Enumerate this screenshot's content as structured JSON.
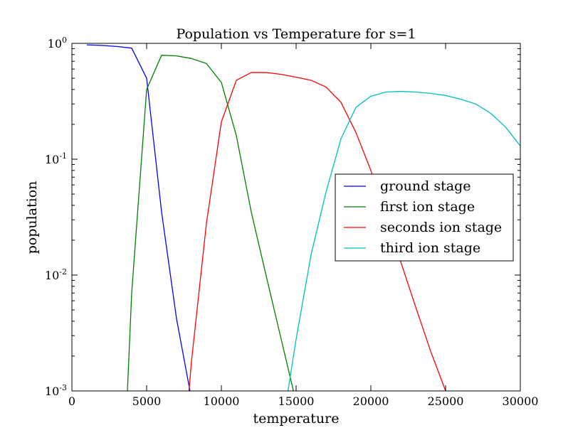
{
  "chart_data": {
    "type": "line",
    "title": "Population vs Temperature for s=1",
    "xlabel": "temperature",
    "ylabel": "population",
    "xlim": [
      0,
      30000
    ],
    "ylim": [
      0.001,
      1.0
    ],
    "yscale": "log",
    "x_ticks": [
      0,
      5000,
      10000,
      15000,
      20000,
      25000,
      30000
    ],
    "y_ticks": [
      {
        "value": 1.0,
        "base": "10",
        "exp": "0"
      },
      {
        "value": 0.1,
        "base": "10",
        "exp": "-1"
      },
      {
        "value": 0.01,
        "base": "10",
        "exp": "-2"
      },
      {
        "value": 0.001,
        "base": "10",
        "exp": "-3"
      }
    ],
    "grid": false,
    "legend_position": "center-right",
    "series": [
      {
        "name": "ground stage",
        "color": "#0000ff",
        "x": [
          1000,
          2000,
          3000,
          4000,
          5000,
          6000,
          7000,
          8000
        ],
        "y": [
          0.97,
          0.96,
          0.94,
          0.91,
          0.5,
          0.035,
          0.0042,
          0.00085
        ]
      },
      {
        "name": "first ion stage",
        "color": "#008000",
        "x": [
          3700,
          4000,
          5000,
          6000,
          7000,
          8000,
          9000,
          10000,
          11000,
          12000,
          13000,
          14000,
          15000
        ],
        "y": [
          0.0009,
          0.007,
          0.4,
          0.79,
          0.78,
          0.74,
          0.67,
          0.46,
          0.16,
          0.035,
          0.0098,
          0.0028,
          0.0008
        ]
      },
      {
        "name": "seconds ion stage",
        "color": "#ff0000",
        "x": [
          7800,
          8000,
          9000,
          10000,
          11000,
          12000,
          13000,
          14000,
          15000,
          16000,
          17000,
          18000,
          19000,
          20000,
          21000,
          22000,
          23000,
          24000,
          25000,
          26000
        ],
        "y": [
          0.0009,
          0.0018,
          0.028,
          0.21,
          0.48,
          0.56,
          0.56,
          0.54,
          0.51,
          0.48,
          0.42,
          0.31,
          0.17,
          0.08,
          0.034,
          0.013,
          0.0053,
          0.0022,
          0.001,
          0.00055
        ]
      },
      {
        "name": "third ion stage",
        "color": "#00bfbf",
        "x": [
          14400,
          15000,
          16000,
          17000,
          18000,
          19000,
          20000,
          21000,
          22000,
          23000,
          24000,
          25000,
          26000,
          27000,
          28000,
          29000,
          30000
        ],
        "y": [
          0.0009,
          0.0028,
          0.015,
          0.052,
          0.15,
          0.28,
          0.35,
          0.38,
          0.385,
          0.38,
          0.37,
          0.355,
          0.33,
          0.3,
          0.25,
          0.19,
          0.13
        ]
      }
    ]
  }
}
